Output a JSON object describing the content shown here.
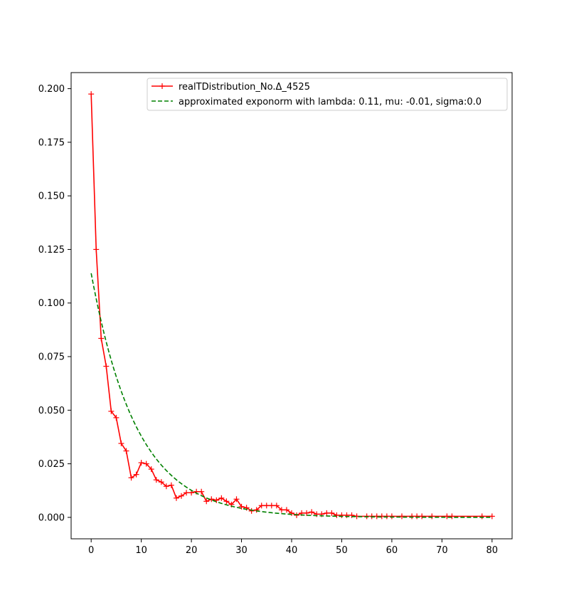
{
  "chart_data": {
    "type": "line",
    "title": "",
    "xlabel": "",
    "ylabel": "",
    "xlim": [
      -4,
      84
    ],
    "ylim": [
      -0.01,
      0.2075
    ],
    "xticks": [
      0,
      10,
      20,
      30,
      40,
      50,
      60,
      70,
      80
    ],
    "yticks": [
      0.0,
      0.025,
      0.05,
      0.075,
      0.1,
      0.125,
      0.15,
      0.175,
      0.2
    ],
    "xtick_labels": [
      "0",
      "10",
      "20",
      "30",
      "40",
      "50",
      "60",
      "70",
      "80"
    ],
    "ytick_labels": [
      "0.000",
      "0.025",
      "0.050",
      "0.075",
      "0.100",
      "0.125",
      "0.150",
      "0.175",
      "0.200"
    ],
    "grid": false,
    "legend_position": "top-right",
    "series": [
      {
        "name": "realTDistribution_No.Δ_4525",
        "color": "#ff0000",
        "style": "solid",
        "marker": "+",
        "x": [
          0,
          1,
          2,
          3,
          4,
          5,
          6,
          7,
          8,
          9,
          10,
          11,
          12,
          13,
          14,
          15,
          16,
          17,
          18,
          19,
          20,
          21,
          22,
          23,
          24,
          25,
          26,
          27,
          28,
          29,
          30,
          31,
          32,
          33,
          34,
          35,
          36,
          37,
          38,
          39,
          40,
          41,
          42,
          43,
          44,
          45,
          46,
          47,
          48,
          49,
          50,
          51,
          52,
          53,
          55,
          56,
          57,
          58,
          59,
          60,
          62,
          64,
          65,
          66,
          68,
          71,
          72,
          78,
          80
        ],
        "y": [
          0.1975,
          0.125,
          0.0835,
          0.0705,
          0.0495,
          0.0465,
          0.0345,
          0.031,
          0.0185,
          0.02,
          0.0255,
          0.025,
          0.0225,
          0.0175,
          0.0165,
          0.0145,
          0.015,
          0.009,
          0.01,
          0.0115,
          0.0115,
          0.012,
          0.012,
          0.0075,
          0.0085,
          0.008,
          0.009,
          0.0075,
          0.006,
          0.0085,
          0.005,
          0.0045,
          0.003,
          0.0035,
          0.0055,
          0.0055,
          0.0055,
          0.0055,
          0.0035,
          0.0035,
          0.002,
          0.001,
          0.002,
          0.002,
          0.0025,
          0.0015,
          0.0015,
          0.002,
          0.002,
          0.001,
          0.001,
          0.001,
          0.001,
          0.0005,
          0.0005,
          0.0005,
          0.0005,
          0.0005,
          0.0005,
          0.0005,
          0.0005,
          0.0005,
          0.0005,
          0.0005,
          0.0005,
          0.0005,
          0.0005,
          0.0005,
          0.0005
        ]
      },
      {
        "name": "approximated exponorm with lambda: 0.11, mu: -0.01, sigma:0.0",
        "color": "#008000",
        "style": "dashed",
        "function": {
          "lambda": 0.11,
          "mu": -0.01,
          "sigma": 0.0,
          "amplitude": 0.114,
          "x_range": [
            0,
            80
          ]
        }
      }
    ]
  }
}
